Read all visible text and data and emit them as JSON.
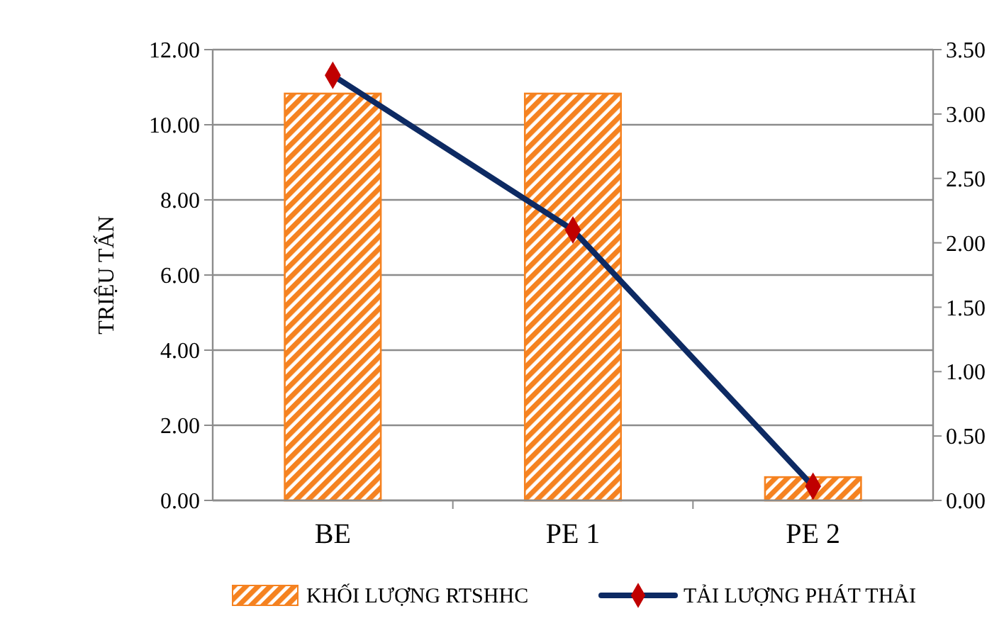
{
  "chart_data": {
    "type": "bar",
    "ylabel": "TRIỆU TẤN",
    "categories": [
      "BE",
      "PE 1",
      "PE 2"
    ],
    "series": [
      {
        "name": "KHỐI LƯỢNG RTSHHC",
        "color": "#f58220",
        "values": [
          10.83,
          10.83,
          0.62
        ]
      },
      {
        "name": "TẢI LƯỢNG PHÁT THẢI",
        "type": "line",
        "axis": "y2",
        "color": "#0d2a63",
        "marker": "diamond",
        "values": [
          3.3,
          2.1,
          0.11
        ]
      }
    ],
    "ylim": [
      0,
      12
    ],
    "yticks": [
      {
        "value": 0,
        "label": "0.00"
      },
      {
        "value": 2,
        "label": "2.00"
      },
      {
        "value": 4,
        "label": "4.00"
      },
      {
        "value": 6,
        "label": "6.00"
      },
      {
        "value": 8,
        "label": "8.00"
      },
      {
        "value": 10,
        "label": "10.00"
      },
      {
        "value": 12,
        "label": "12.00"
      }
    ],
    "y2lim": [
      0,
      3.5
    ],
    "y2ticks": [
      {
        "value": 0,
        "label": "0.00"
      },
      {
        "value": 0.5,
        "label": "0.50"
      },
      {
        "value": 1,
        "label": "1.00"
      },
      {
        "value": 1.5,
        "label": "1.50"
      },
      {
        "value": 2,
        "label": "2.00"
      },
      {
        "value": 2.5,
        "label": "2.50"
      },
      {
        "value": 3,
        "label": "3.00"
      },
      {
        "value": 3.5,
        "label": "3.50"
      }
    ],
    "grid": "y",
    "legend": "bottom"
  }
}
